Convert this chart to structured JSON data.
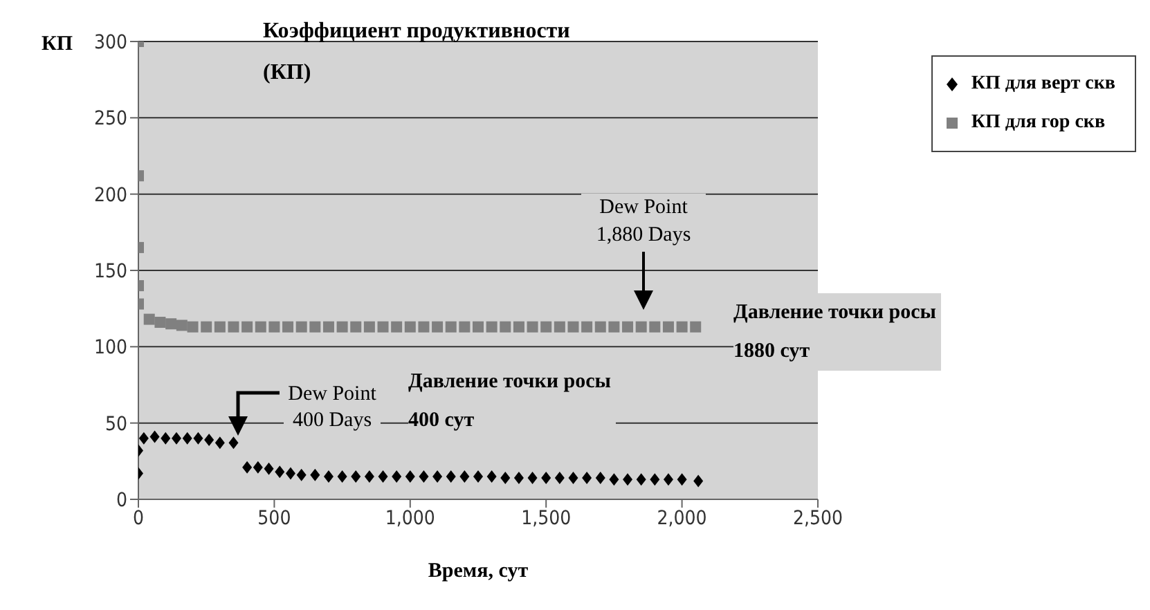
{
  "chart_data": {
    "type": "scatter",
    "title": "Коэффициент продуктивности (КП)",
    "xlabel": "Время, сут",
    "ylabel": "КП",
    "xlim": [
      0,
      2500
    ],
    "xticks": [
      {
        "value": 0,
        "label": "0"
      },
      {
        "value": 500,
        "label": "500"
      },
      {
        "value": 1000,
        "label": "1,000"
      },
      {
        "value": 1500,
        "label": "1,500"
      },
      {
        "value": 2000,
        "label": "2,000"
      },
      {
        "value": 2500,
        "label": "2,500"
      }
    ],
    "ylim": [
      0,
      300
    ],
    "yticks": [
      0,
      50,
      100,
      150,
      200,
      250,
      300
    ],
    "grid": "y",
    "legend": "right",
    "series": [
      {
        "name": "КП для верт скв",
        "color": "#000000",
        "marker": "diamond",
        "x": [
          0,
          0,
          20,
          60,
          100,
          140,
          180,
          220,
          260,
          300,
          350,
          400,
          440,
          480,
          520,
          560,
          600,
          650,
          700,
          750,
          800,
          850,
          900,
          950,
          1000,
          1050,
          1100,
          1150,
          1200,
          1250,
          1300,
          1350,
          1400,
          1450,
          1500,
          1550,
          1600,
          1650,
          1700,
          1750,
          1800,
          1850,
          1900,
          1950,
          2000,
          2060
        ],
        "values": [
          17,
          32,
          40,
          41,
          40,
          40,
          40,
          40,
          39,
          37,
          37,
          21,
          21,
          20,
          18,
          17,
          16,
          16,
          15,
          15,
          15,
          15,
          15,
          15,
          15,
          15,
          15,
          15,
          15,
          15,
          15,
          14,
          14,
          14,
          14,
          14,
          14,
          14,
          14,
          13,
          13,
          13,
          13,
          13,
          13,
          12
        ]
      },
      {
        "name": "КП для гор скв",
        "color": "#808080",
        "marker": "square",
        "x": [
          0,
          0,
          0,
          0,
          0,
          40,
          80,
          120,
          160,
          200,
          250,
          300,
          350,
          400,
          450,
          500,
          550,
          600,
          650,
          700,
          750,
          800,
          850,
          900,
          950,
          1000,
          1050,
          1100,
          1150,
          1200,
          1250,
          1300,
          1350,
          1400,
          1450,
          1500,
          1550,
          1600,
          1650,
          1700,
          1750,
          1800,
          1850,
          1900,
          1950,
          2000,
          2050
        ],
        "values": [
          300,
          212,
          165,
          140,
          128,
          118,
          116,
          115,
          114,
          113,
          113,
          113,
          113,
          113,
          113,
          113,
          113,
          113,
          113,
          113,
          113,
          113,
          113,
          113,
          113,
          113,
          113,
          113,
          113,
          113,
          113,
          113,
          113,
          113,
          113,
          113,
          113,
          113,
          113,
          113,
          113,
          113,
          113,
          113,
          113,
          113,
          113
        ]
      }
    ],
    "annotations": [
      "Dew Point 400 Days",
      "Давление точки росы 400 сут",
      "Dew Point 1,880 Days",
      "Давление точки росы 1880 сут"
    ]
  }
}
